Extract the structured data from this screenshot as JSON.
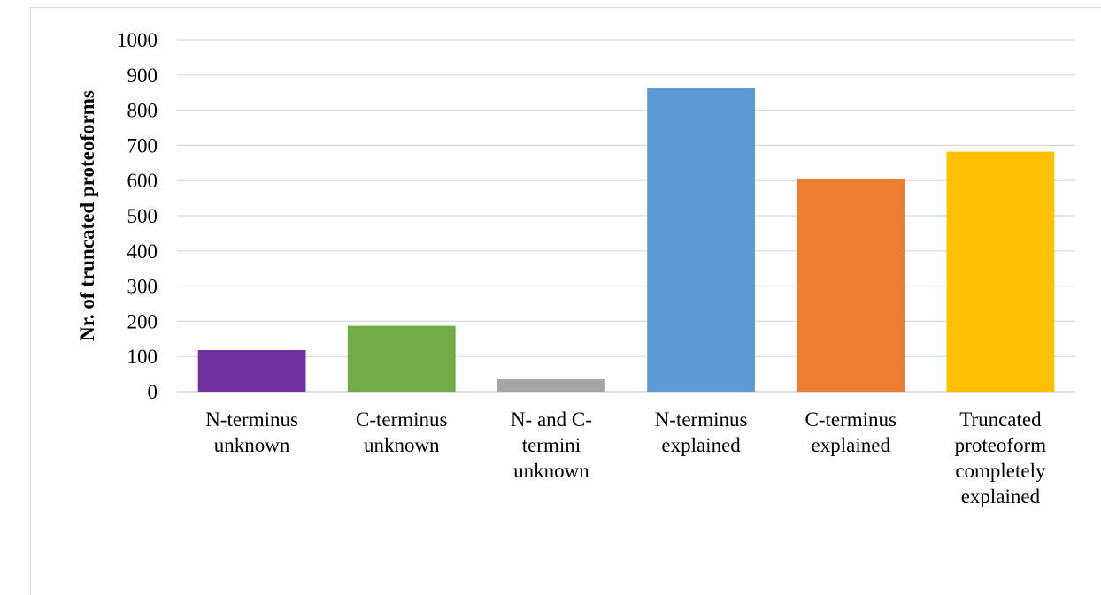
{
  "chart_data": {
    "type": "bar",
    "title": "",
    "xlabel": "",
    "ylabel": "Nr. of truncated proteoforms",
    "ylim": [
      0,
      1000
    ],
    "yticks": [
      0,
      100,
      200,
      300,
      400,
      500,
      600,
      700,
      800,
      900,
      1000
    ],
    "grid": true,
    "legend": "none",
    "categories": [
      [
        "N-terminus",
        "unknown"
      ],
      [
        "C-terminus",
        "unknown"
      ],
      [
        "N- and C-",
        "termini",
        "unknown"
      ],
      [
        "N-terminus",
        "explained"
      ],
      [
        "C-terminus",
        "explained"
      ],
      [
        "Truncated",
        "proteoform",
        "completely",
        "explained"
      ]
    ],
    "values": [
      118,
      187,
      35,
      864,
      605,
      682
    ],
    "colors": [
      "#7030A0",
      "#70AD47",
      "#A5A5A5",
      "#5B9BD5",
      "#ED7D31",
      "#FFC000"
    ]
  }
}
